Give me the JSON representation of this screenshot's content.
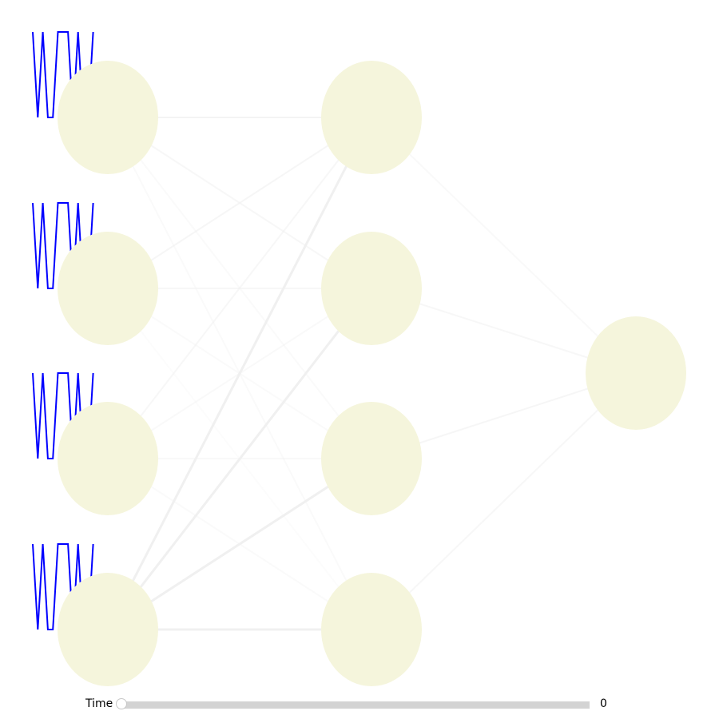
{
  "network": {
    "layers": [
      4,
      4,
      1
    ],
    "node_color": "#f5f5dc",
    "edge_color": "#f0f0f0",
    "spike_color": "#0000ff",
    "input_spikes": [
      [
        1,
        0,
        1,
        0,
        0,
        1,
        1,
        1,
        0,
        1,
        0,
        0,
        1
      ],
      [
        1,
        0,
        1,
        0,
        0,
        1,
        1,
        1,
        0,
        1,
        0,
        0,
        1
      ],
      [
        1,
        0,
        1,
        0,
        0,
        1,
        1,
        1,
        0,
        1,
        0,
        0,
        1
      ],
      [
        1,
        0,
        1,
        0,
        0,
        1,
        1,
        1,
        0,
        1,
        0,
        0,
        1
      ]
    ]
  },
  "time_control": {
    "label": "Time",
    "value": "0",
    "fraction": 0
  }
}
